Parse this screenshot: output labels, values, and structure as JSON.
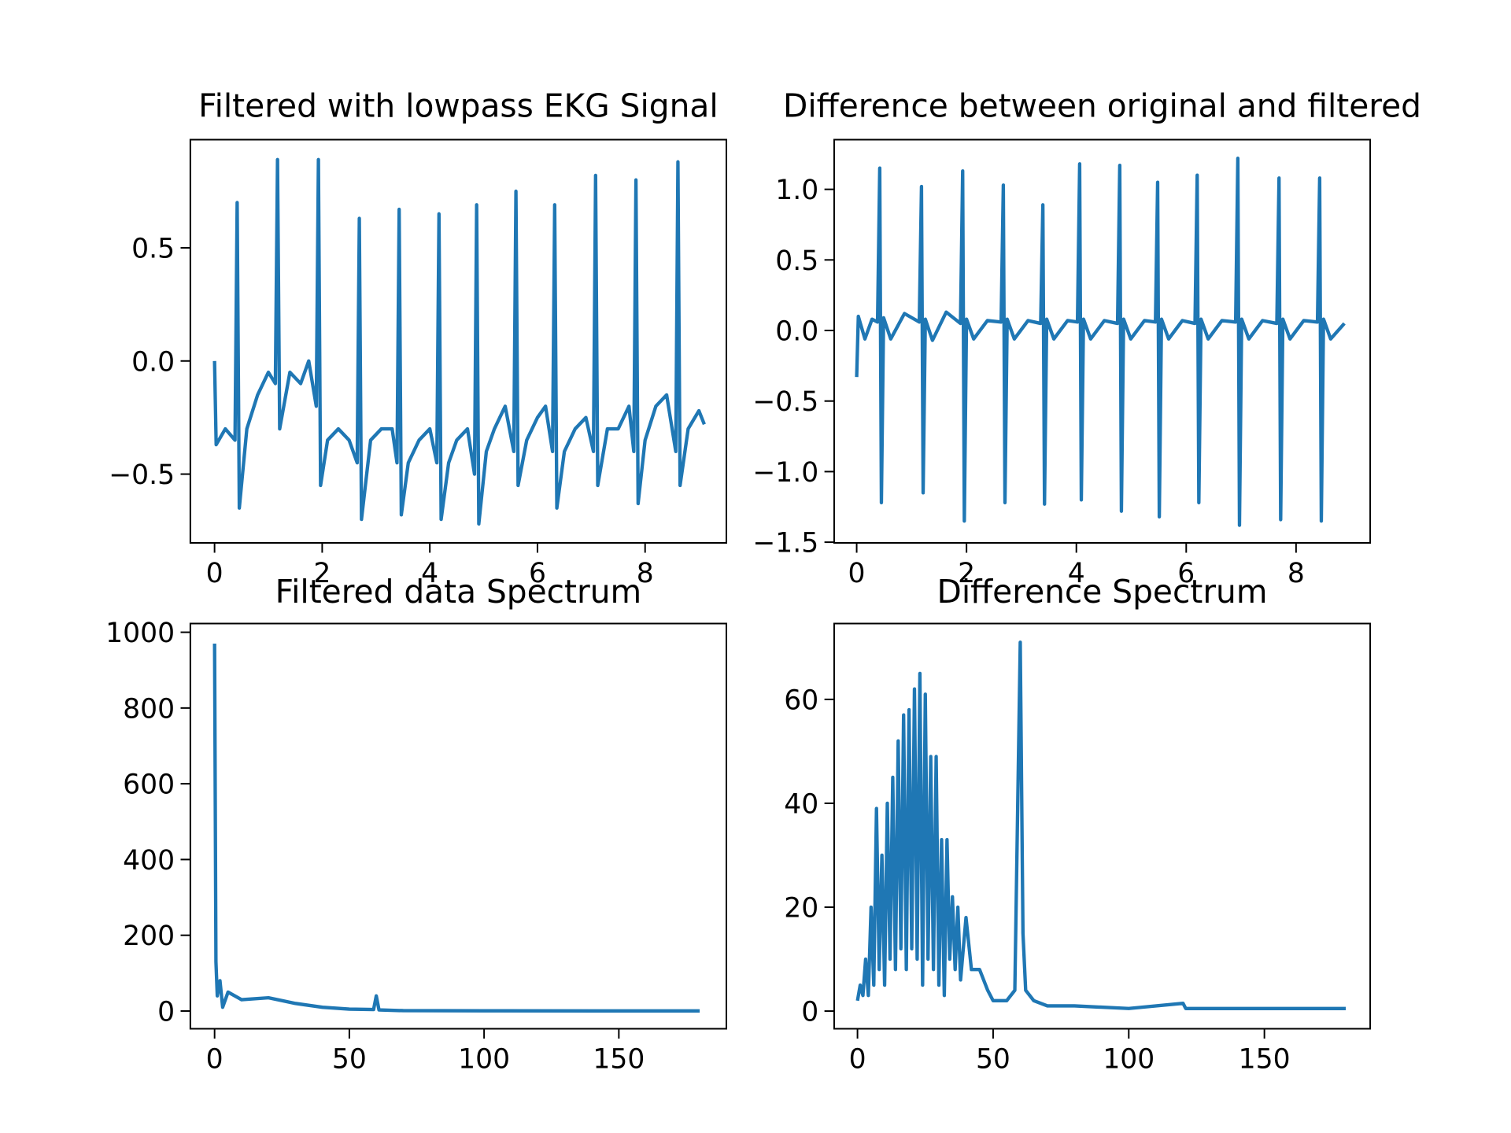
{
  "chart_data": [
    {
      "type": "line",
      "title": "Filtered with lowpass  EKG Signal",
      "color": "#1f77b4",
      "x": [
        0,
        0.03,
        0.2,
        0.38,
        0.42,
        0.46,
        0.6,
        0.8,
        1.0,
        1.13,
        1.17,
        1.21,
        1.4,
        1.6,
        1.75,
        1.89,
        1.93,
        1.97,
        2.1,
        2.3,
        2.5,
        2.65,
        2.69,
        2.73,
        2.9,
        3.1,
        3.3,
        3.39,
        3.43,
        3.47,
        3.6,
        3.8,
        4.0,
        4.13,
        4.17,
        4.21,
        4.35,
        4.5,
        4.7,
        4.83,
        4.87,
        4.91,
        5.05,
        5.2,
        5.4,
        5.56,
        5.6,
        5.64,
        5.8,
        6.0,
        6.15,
        6.28,
        6.32,
        6.36,
        6.5,
        6.7,
        6.9,
        7.04,
        7.08,
        7.12,
        7.3,
        7.5,
        7.7,
        7.79,
        7.83,
        7.87,
        8.0,
        8.2,
        8.4,
        8.57,
        8.61,
        8.65,
        8.8,
        9.0,
        9.1
      ],
      "values": [
        0.0,
        -0.37,
        -0.3,
        -0.35,
        0.7,
        -0.65,
        -0.3,
        -0.15,
        -0.05,
        -0.1,
        0.89,
        -0.3,
        -0.05,
        -0.1,
        0.0,
        -0.2,
        0.89,
        -0.55,
        -0.35,
        -0.3,
        -0.35,
        -0.45,
        0.63,
        -0.7,
        -0.35,
        -0.3,
        -0.3,
        -0.45,
        0.67,
        -0.68,
        -0.45,
        -0.35,
        -0.3,
        -0.45,
        0.65,
        -0.7,
        -0.45,
        -0.35,
        -0.3,
        -0.5,
        0.69,
        -0.72,
        -0.4,
        -0.3,
        -0.2,
        -0.4,
        0.75,
        -0.55,
        -0.35,
        -0.25,
        -0.2,
        -0.4,
        0.69,
        -0.65,
        -0.4,
        -0.3,
        -0.25,
        -0.4,
        0.82,
        -0.55,
        -0.3,
        -0.3,
        -0.2,
        -0.4,
        0.8,
        -0.63,
        -0.35,
        -0.2,
        -0.15,
        -0.4,
        0.88,
        -0.55,
        -0.3,
        -0.22,
        -0.28
      ],
      "xlim": [
        -0.45,
        9.51
      ],
      "ylim": [
        -0.804,
        0.978
      ],
      "xticks": [
        0,
        2,
        4,
        6,
        8
      ],
      "yticks": [
        {
          "value": -0.5,
          "label": "−0.5"
        },
        {
          "value": 0,
          "label": "0.0"
        },
        0.5
      ]
    },
    {
      "type": "line",
      "title": "Difference between original and filtered",
      "color": "#1f77b4",
      "x": [
        0,
        0.03,
        0.15,
        0.28,
        0.38,
        0.42,
        0.45,
        0.49,
        0.62,
        0.87,
        1.14,
        1.18,
        1.21,
        1.25,
        1.38,
        1.63,
        1.89,
        1.93,
        1.96,
        2.0,
        2.13,
        2.38,
        2.63,
        2.67,
        2.7,
        2.74,
        2.87,
        3.12,
        3.35,
        3.39,
        3.42,
        3.46,
        3.59,
        3.84,
        4.02,
        4.06,
        4.09,
        4.13,
        4.26,
        4.51,
        4.75,
        4.79,
        4.82,
        4.86,
        4.99,
        5.24,
        5.44,
        5.48,
        5.51,
        5.55,
        5.68,
        5.93,
        6.16,
        6.2,
        6.23,
        6.27,
        6.4,
        6.65,
        6.9,
        6.94,
        6.97,
        7.01,
        7.14,
        7.39,
        7.65,
        7.69,
        7.72,
        7.76,
        7.89,
        8.14,
        8.39,
        8.43,
        8.46,
        8.5,
        8.63,
        8.88
      ],
      "values": [
        -0.33,
        0.1,
        -0.06,
        0.08,
        0.06,
        1.15,
        -1.22,
        0.09,
        -0.06,
        0.12,
        0.06,
        1.02,
        -1.15,
        0.08,
        -0.07,
        0.13,
        0.05,
        1.13,
        -1.35,
        0.08,
        -0.06,
        0.07,
        0.06,
        1.03,
        -1.22,
        0.08,
        -0.06,
        0.07,
        0.05,
        0.89,
        -1.23,
        0.08,
        -0.06,
        0.07,
        0.06,
        1.18,
        -1.2,
        0.08,
        -0.06,
        0.07,
        0.05,
        1.17,
        -1.28,
        0.08,
        -0.06,
        0.07,
        0.06,
        1.05,
        -1.32,
        0.08,
        -0.06,
        0.07,
        0.05,
        1.1,
        -1.22,
        0.08,
        -0.06,
        0.07,
        0.06,
        1.22,
        -1.38,
        0.08,
        -0.06,
        0.07,
        0.05,
        1.08,
        -1.34,
        0.08,
        -0.06,
        0.07,
        0.06,
        1.08,
        -1.35,
        0.08,
        -0.06,
        0.05
      ],
      "xlim": [
        -0.41,
        9.35
      ],
      "ylim": [
        -1.505,
        1.352
      ],
      "xticks": [
        0,
        2,
        4,
        6,
        8
      ],
      "yticks": [
        {
          "value": -1.5,
          "label": "−1.5"
        },
        {
          "value": -1,
          "label": "−1.0"
        },
        {
          "value": -0.5,
          "label": "−0.5"
        },
        {
          "value": 0,
          "label": "0.0"
        },
        0.5,
        {
          "value": 1,
          "label": "1.0"
        }
      ]
    },
    {
      "type": "line",
      "title": "Filtered data Spectrum",
      "color": "#1f77b4",
      "x": [
        0,
        0.5,
        1,
        2,
        3,
        5,
        10,
        20,
        30,
        40,
        50,
        59,
        60,
        61,
        70,
        100,
        150,
        180
      ],
      "values": [
        970,
        130,
        40,
        80,
        10,
        50,
        30,
        35,
        20,
        10,
        5,
        4,
        40,
        3,
        1,
        0.5,
        0.3,
        0.3
      ],
      "xlim": [
        -9.0,
        189.9
      ],
      "ylim": [
        -46.8,
        1023
      ],
      "xticks": [
        0,
        50,
        100,
        150
      ],
      "yticks": [
        0,
        200,
        400,
        600,
        800,
        1000
      ]
    },
    {
      "type": "line",
      "title": "Difference Spectrum",
      "color": "#1f77b4",
      "x": [
        0,
        1,
        2,
        3,
        4,
        5,
        6,
        7,
        8,
        9,
        10,
        11,
        12,
        13,
        14,
        15,
        16,
        17,
        18,
        19,
        20,
        21,
        22,
        23,
        24,
        25,
        26,
        27,
        28,
        29,
        30,
        31,
        32,
        33,
        34,
        35,
        36,
        37,
        38,
        40,
        42,
        45,
        48,
        50,
        55,
        58,
        60,
        61,
        62,
        65,
        70,
        80,
        100,
        120,
        121,
        150,
        180
      ],
      "values": [
        2,
        5,
        3,
        10,
        3,
        20,
        5,
        39,
        8,
        30,
        5,
        40,
        10,
        45,
        8,
        52,
        12,
        57,
        8,
        58,
        12,
        62,
        10,
        65,
        5,
        61,
        10,
        49,
        8,
        49,
        5,
        33,
        3,
        33,
        10,
        22,
        8,
        20,
        6,
        18,
        8,
        8,
        4,
        2,
        2,
        4,
        71,
        15,
        4,
        2,
        1,
        1,
        0.5,
        1.5,
        0.5,
        0.5,
        0.5
      ],
      "xlim": [
        -8.6,
        189.0
      ],
      "ylim": [
        -3.4,
        74.6
      ],
      "xticks": [
        0,
        50,
        100,
        150
      ],
      "yticks": [
        0,
        20,
        40,
        60
      ]
    }
  ]
}
